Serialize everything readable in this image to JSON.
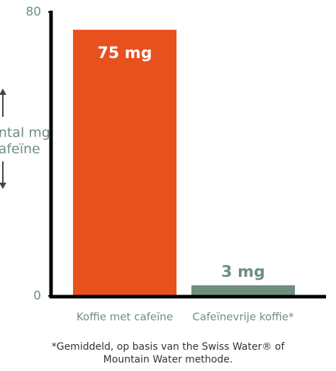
{
  "chart_data": {
    "type": "bar",
    "y_label": [
      "Aantal mg",
      "cafeïne"
    ],
    "categories": [
      "Koffie met cafeïne",
      "Cafeïnevrije koffie*"
    ],
    "values": [
      75,
      3
    ],
    "value_labels": [
      "75 mg",
      "3 mg"
    ],
    "colors": [
      "#e8501e",
      "#6f8f7f"
    ],
    "ylim": [
      0,
      80
    ],
    "yticks": [
      0,
      80
    ],
    "footnote": [
      "*Gemiddeld, op basis van the Swiss Water® of",
      "Mountain Water methode."
    ]
  }
}
